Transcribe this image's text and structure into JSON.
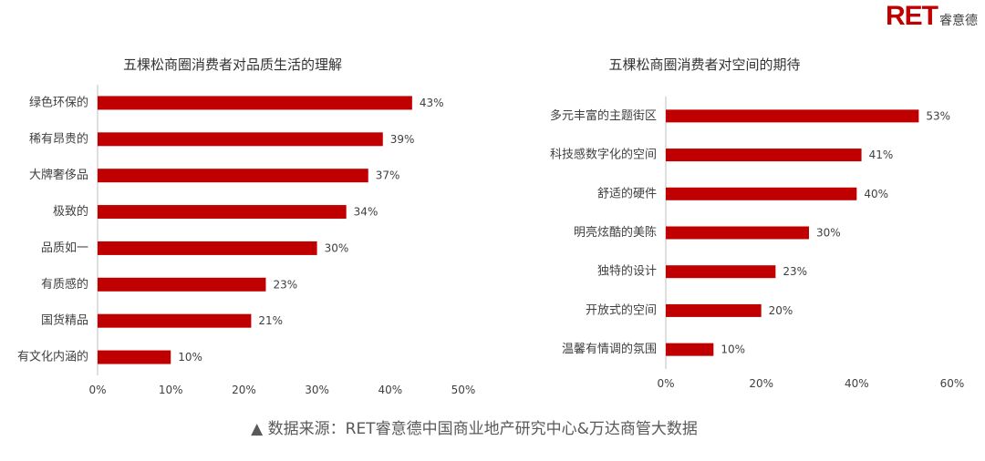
{
  "logo": {
    "brand": "RET",
    "cn": "睿意德"
  },
  "source_note": "▲ 数据来源：RET睿意德中国商业地产研究中心&万达商管大数据",
  "colors": {
    "bar": "#c00000",
    "axis": "#bfbfbf",
    "text": "#404040",
    "brand": "#c00000"
  },
  "chart_data": [
    {
      "type": "bar",
      "orientation": "horizontal",
      "title": "五棵松商圈消费者对品质生活的理解",
      "categories": [
        "绿色环保的",
        "稀有昂贵的",
        "大牌奢侈品",
        "极致的",
        "品质如一",
        "有质感的",
        "国货精品",
        "有文化内涵的"
      ],
      "values": [
        43,
        39,
        37,
        34,
        30,
        23,
        21,
        10
      ],
      "data_labels": [
        "43%",
        "39%",
        "37%",
        "34%",
        "30%",
        "23%",
        "21%",
        "10%"
      ],
      "xlim": [
        0,
        50
      ],
      "ticks": [
        0,
        10,
        20,
        30,
        40,
        50
      ],
      "tick_labels": [
        "0%",
        "10%",
        "20%",
        "30%",
        "40%",
        "50%"
      ],
      "grid": false
    },
    {
      "type": "bar",
      "orientation": "horizontal",
      "title": "五棵松商圈消费者对空间的期待",
      "categories": [
        "多元丰富的主题街区",
        "科技感数字化的空间",
        "舒适的硬件",
        "明亮炫酷的美陈",
        "独特的设计",
        "开放式的空间",
        "温馨有情调的氛围"
      ],
      "values": [
        53,
        41,
        40,
        30,
        23,
        20,
        10
      ],
      "data_labels": [
        "53%",
        "41%",
        "40%",
        "30%",
        "23%",
        "20%",
        "10%"
      ],
      "xlim": [
        0,
        60
      ],
      "ticks": [
        0,
        20,
        40,
        60
      ],
      "tick_labels": [
        "0%",
        "20%",
        "40%",
        "60%"
      ],
      "grid": false
    }
  ]
}
